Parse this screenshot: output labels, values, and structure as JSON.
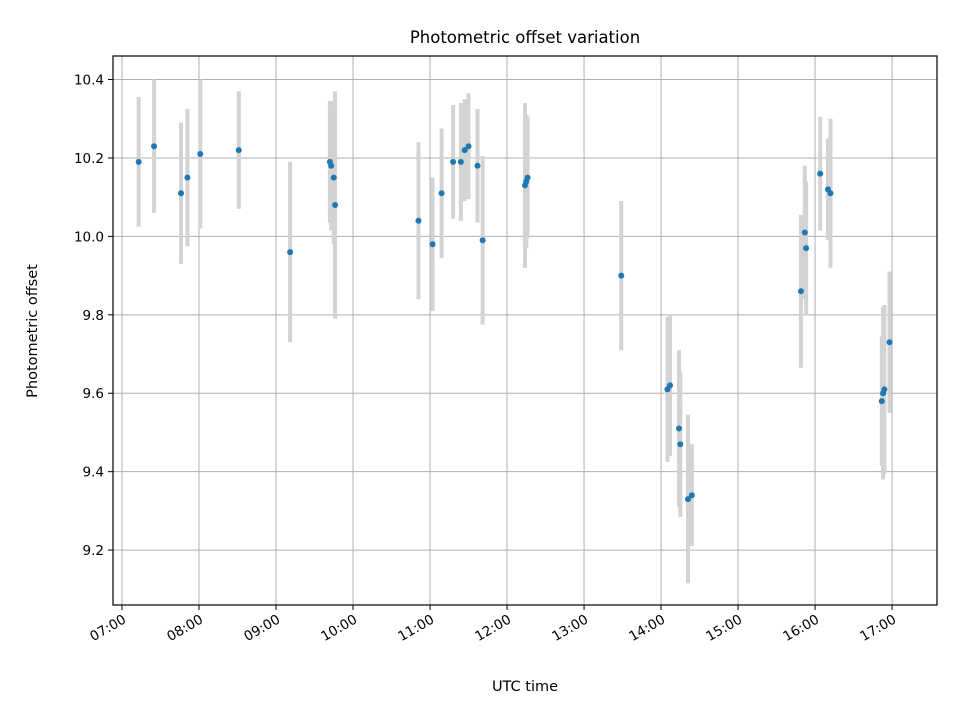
{
  "chart_data": {
    "type": "scatter",
    "title": "Photometric offset variation",
    "xlabel": "UTC time",
    "ylabel": "Photometric offset",
    "x_ticks": [
      "07:00",
      "08:00",
      "09:00",
      "10:00",
      "11:00",
      "12:00",
      "13:00",
      "14:00",
      "15:00",
      "16:00",
      "17:00"
    ],
    "y_ticks": [
      "9.2",
      "9.4",
      "9.6",
      "9.8",
      "10.0",
      "10.2",
      "10.4"
    ],
    "xlim": [
      "06:53",
      "17:35"
    ],
    "ylim": [
      9.06,
      10.46
    ],
    "grid": true,
    "marker_color": "#1f77b4",
    "errorbar_color": "#d3d3d3",
    "points": [
      {
        "x": "07:13",
        "y": 10.19,
        "err": 0.165
      },
      {
        "x": "07:25",
        "y": 10.23,
        "err": 0.17
      },
      {
        "x": "07:46",
        "y": 10.11,
        "err": 0.18
      },
      {
        "x": "07:51",
        "y": 10.15,
        "err": 0.175
      },
      {
        "x": "08:01",
        "y": 10.21,
        "err": 0.19
      },
      {
        "x": "08:31",
        "y": 10.22,
        "err": 0.15
      },
      {
        "x": "09:11",
        "y": 9.96,
        "err": 0.23
      },
      {
        "x": "09:42",
        "y": 10.19,
        "err": 0.155
      },
      {
        "x": "09:43",
        "y": 10.18,
        "err": 0.165
      },
      {
        "x": "09:45",
        "y": 10.15,
        "err": 0.17
      },
      {
        "x": "09:46",
        "y": 10.08,
        "err": 0.29
      },
      {
        "x": "10:51",
        "y": 10.04,
        "err": 0.2
      },
      {
        "x": "11:02",
        "y": 9.98,
        "err": 0.17
      },
      {
        "x": "11:09",
        "y": 10.11,
        "err": 0.165
      },
      {
        "x": "11:18",
        "y": 10.19,
        "err": 0.145
      },
      {
        "x": "11:24",
        "y": 10.19,
        "err": 0.15
      },
      {
        "x": "11:27",
        "y": 10.22,
        "err": 0.13
      },
      {
        "x": "11:30",
        "y": 10.23,
        "err": 0.135
      },
      {
        "x": "11:37",
        "y": 10.18,
        "err": 0.145
      },
      {
        "x": "11:41",
        "y": 9.99,
        "err": 0.215
      },
      {
        "x": "12:14",
        "y": 10.13,
        "err": 0.21
      },
      {
        "x": "12:15",
        "y": 10.14,
        "err": 0.17
      },
      {
        "x": "12:16",
        "y": 10.15,
        "err": 0.155
      },
      {
        "x": "13:29",
        "y": 9.9,
        "err": 0.19
      },
      {
        "x": "14:05",
        "y": 9.61,
        "err": 0.185
      },
      {
        "x": "14:07",
        "y": 9.62,
        "err": 0.18
      },
      {
        "x": "14:14",
        "y": 9.51,
        "err": 0.2
      },
      {
        "x": "14:15",
        "y": 9.47,
        "err": 0.185
      },
      {
        "x": "14:21",
        "y": 9.33,
        "err": 0.215
      },
      {
        "x": "14:24",
        "y": 9.34,
        "err": 0.13
      },
      {
        "x": "15:49",
        "y": 9.86,
        "err": 0.195
      },
      {
        "x": "15:52",
        "y": 10.01,
        "err": 0.17
      },
      {
        "x": "15:53",
        "y": 9.97,
        "err": 0.17
      },
      {
        "x": "16:04",
        "y": 10.16,
        "err": 0.145
      },
      {
        "x": "16:10",
        "y": 10.12,
        "err": 0.13
      },
      {
        "x": "16:12",
        "y": 10.11,
        "err": 0.19
      },
      {
        "x": "16:52",
        "y": 9.58,
        "err": 0.165
      },
      {
        "x": "16:53",
        "y": 9.6,
        "err": 0.22
      },
      {
        "x": "16:54",
        "y": 9.61,
        "err": 0.215
      },
      {
        "x": "16:58",
        "y": 9.73,
        "err": 0.18
      }
    ]
  }
}
